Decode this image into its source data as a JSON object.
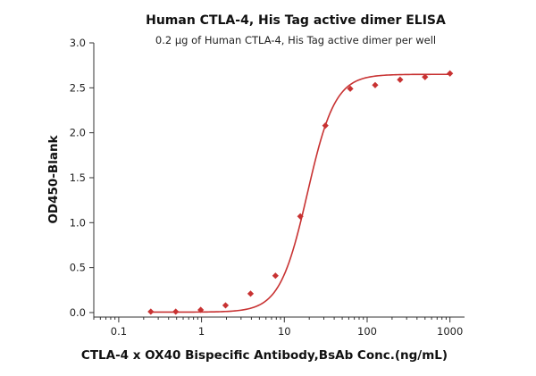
{
  "chart_data": {
    "type": "scatter",
    "title": "Human CTLA-4, His Tag active dimer ELISA",
    "subtitle": "0.2 µg of Human CTLA-4, His Tag  active dimer per well",
    "xlabel": "CTLA-4 x OX40 Bispecific Antibody,BsAb Conc.(ng/mL)",
    "ylabel": "OD450-Blank",
    "x_scale": "log",
    "xlim": [
      0.05,
      1500
    ],
    "ylim": [
      -0.05,
      3.0
    ],
    "x_ticks": [
      0.1,
      1,
      10,
      100,
      1000
    ],
    "x_tick_labels": [
      "0.1",
      "1",
      "10",
      "100",
      "1000"
    ],
    "y_ticks": [
      0.0,
      0.5,
      1.0,
      1.5,
      2.0,
      2.5,
      3.0
    ],
    "y_tick_labels": [
      "0.0",
      "0.5",
      "1.0",
      "1.5",
      "2.0",
      "2.5",
      "3.0"
    ],
    "grid": false,
    "series": [
      {
        "color": "#c83232",
        "marker": "diamond",
        "fit_line": true,
        "x": [
          0.244,
          0.488,
          0.977,
          1.95,
          3.91,
          7.81,
          15.6,
          31.3,
          62.5,
          125,
          250,
          500,
          1000
        ],
        "y": [
          0.01,
          0.01,
          0.03,
          0.08,
          0.21,
          0.41,
          1.07,
          2.08,
          2.49,
          2.53,
          2.59,
          2.62,
          2.66
        ]
      }
    ],
    "fit": {
      "bottom": 0.005,
      "top": 2.65,
      "ec50": 19.0,
      "hill": 2.6
    }
  }
}
